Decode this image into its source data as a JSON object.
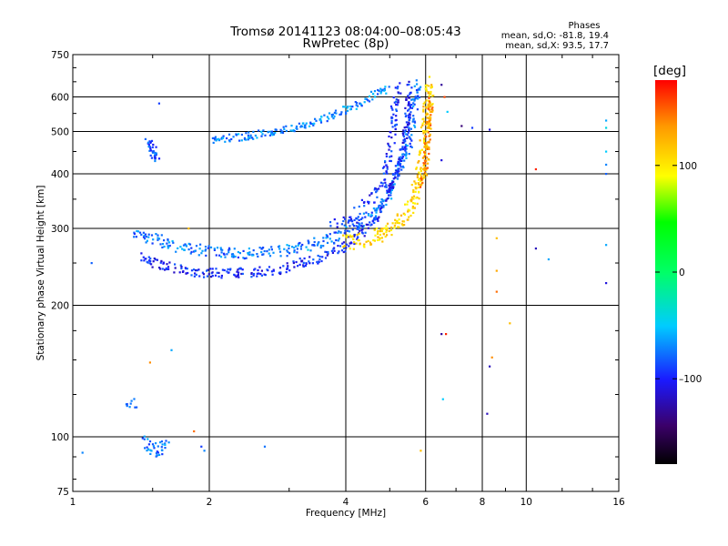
{
  "chart_data": {
    "type": "scatter",
    "title": "Tromsø 20141123 08:04:00–08:05:43",
    "subtitle": "RwPretec (8p)",
    "xlabel": "Frequency [MHz]",
    "ylabel": "Stationary phase Virtual Height [km]",
    "x_scale": "log",
    "y_scale": "log",
    "xlim": [
      1,
      16
    ],
    "ylim": [
      75,
      750
    ],
    "x_ticks": [
      1,
      2,
      4,
      6,
      8,
      10,
      16
    ],
    "x_tick_labels": [
      "1",
      "2",
      "4",
      "6",
      "8",
      "10",
      "16"
    ],
    "y_ticks": [
      75,
      100,
      200,
      300,
      400,
      500,
      600,
      750
    ],
    "y_tick_labels": [
      "75",
      "100",
      "200",
      "300",
      "400",
      "500",
      "600",
      "750"
    ],
    "grid": true,
    "phase_stats": {
      "heading": "Phases",
      "line_o": "mean, sd,O: -81.8, 19.4",
      "line_x": "mean, sd,X:  93.5, 17.7"
    },
    "colorbar": {
      "label": "[deg]",
      "range": [
        -180,
        180
      ],
      "ticks": [
        100,
        0,
        -100
      ],
      "tick_labels": [
        "100",
        "0",
        "–100"
      ]
    },
    "trace_groups": [
      {
        "points": [
          [
            1.35,
            290
          ],
          [
            1.5,
            285
          ],
          [
            1.7,
            272
          ],
          [
            1.9,
            268
          ],
          [
            2.2,
            265
          ],
          [
            2.5,
            263
          ],
          [
            2.8,
            265
          ],
          [
            3.1,
            270
          ],
          [
            3.4,
            275
          ],
          [
            3.7,
            285
          ],
          [
            4.0,
            295
          ],
          [
            4.3,
            308
          ],
          [
            4.6,
            325
          ],
          [
            4.9,
            350
          ],
          [
            5.1,
            380
          ],
          [
            5.3,
            420
          ],
          [
            5.5,
            470
          ],
          [
            5.6,
            530
          ],
          [
            5.7,
            600
          ],
          [
            5.8,
            640
          ]
        ],
        "phase": -75,
        "spread": 0.03,
        "density": 5
      },
      {
        "points": [
          [
            1.4,
            258
          ],
          [
            1.55,
            248
          ],
          [
            1.7,
            242
          ],
          [
            1.85,
            238
          ],
          [
            2.1,
            237
          ],
          [
            2.5,
            238
          ],
          [
            2.9,
            243
          ],
          [
            3.3,
            252
          ],
          [
            3.7,
            262
          ],
          [
            4.0,
            275
          ],
          [
            4.3,
            292
          ],
          [
            4.6,
            312
          ],
          [
            4.85,
            340
          ],
          [
            5.05,
            372
          ],
          [
            5.2,
            410
          ],
          [
            5.35,
            460
          ],
          [
            5.45,
            520
          ],
          [
            5.5,
            580
          ],
          [
            5.55,
            640
          ]
        ],
        "phase": -98,
        "spread": 0.025,
        "density": 5
      },
      {
        "points": [
          [
            2.0,
            478
          ],
          [
            2.3,
            485
          ],
          [
            2.7,
            497
          ],
          [
            3.1,
            510
          ],
          [
            3.5,
            530
          ],
          [
            3.9,
            555
          ],
          [
            4.3,
            580
          ],
          [
            4.6,
            605
          ],
          [
            4.85,
            620
          ],
          [
            5.0,
            625
          ]
        ],
        "phase": -70,
        "spread": 0.02,
        "density": 5
      },
      {
        "points": [
          [
            3.7,
            300
          ],
          [
            4.1,
            315
          ],
          [
            4.5,
            345
          ],
          [
            4.8,
            380
          ],
          [
            4.95,
            420
          ],
          [
            5.05,
            470
          ],
          [
            5.1,
            530
          ],
          [
            5.15,
            590
          ],
          [
            5.2,
            640
          ]
        ],
        "phase": -95,
        "spread": 0.035,
        "density": 4
      },
      {
        "points": [
          [
            4.0,
            278
          ],
          [
            4.4,
            283
          ],
          [
            4.8,
            292
          ],
          [
            5.2,
            308
          ],
          [
            5.5,
            330
          ],
          [
            5.7,
            360
          ],
          [
            5.85,
            395
          ],
          [
            5.95,
            440
          ],
          [
            6.0,
            490
          ],
          [
            6.05,
            550
          ],
          [
            6.1,
            610
          ],
          [
            6.12,
            650
          ]
        ],
        "phase": 110,
        "spread": 0.04,
        "density": 7
      },
      {
        "points": [
          [
            5.9,
            380
          ],
          [
            6.0,
            430
          ],
          [
            6.05,
            480
          ],
          [
            6.1,
            540
          ],
          [
            6.15,
            600
          ]
        ],
        "phase": 140,
        "spread": 0.025,
        "density": 4
      },
      {
        "points": [
          [
            1.47,
            470
          ],
          [
            1.5,
            450
          ],
          [
            1.53,
            430
          ]
        ],
        "phase": -85,
        "spread": 0.03,
        "density": 10
      },
      {
        "points": [
          [
            1.45,
            98
          ],
          [
            1.5,
            95
          ],
          [
            1.55,
            93
          ],
          [
            1.6,
            97
          ]
        ],
        "phase": -75,
        "spread": 0.04,
        "density": 8
      },
      {
        "points": [
          [
            1.32,
            120
          ],
          [
            1.37,
            118
          ]
        ],
        "phase": -70,
        "spread": 0.03,
        "density": 6
      }
    ],
    "scattered_points": [
      [
        1.05,
        92,
        -70
      ],
      [
        1.1,
        250,
        -80
      ],
      [
        1.55,
        580,
        -90
      ],
      [
        1.65,
        158,
        -60
      ],
      [
        1.8,
        300,
        120
      ],
      [
        1.85,
        103,
        150
      ],
      [
        1.92,
        95,
        -90
      ],
      [
        1.95,
        93,
        -70
      ],
      [
        2.65,
        95,
        -75
      ],
      [
        3.3,
        268,
        -40
      ],
      [
        6.5,
        640,
        -130
      ],
      [
        6.6,
        600,
        160
      ],
      [
        6.7,
        555,
        -50
      ],
      [
        7.2,
        515,
        -140
      ],
      [
        7.6,
        510,
        -90
      ],
      [
        8.3,
        505,
        -110
      ],
      [
        6.5,
        430,
        -110
      ],
      [
        6.5,
        172,
        -130
      ],
      [
        6.65,
        172,
        170
      ],
      [
        6.55,
        122,
        -50
      ],
      [
        8.6,
        285,
        120
      ],
      [
        8.6,
        240,
        130
      ],
      [
        8.6,
        215,
        150
      ],
      [
        9.2,
        182,
        120
      ],
      [
        8.4,
        152,
        140
      ],
      [
        8.3,
        145,
        -120
      ],
      [
        8.2,
        113,
        -120
      ],
      [
        10.5,
        410,
        170
      ],
      [
        10.5,
        270,
        -120
      ],
      [
        11.2,
        255,
        -60
      ],
      [
        15,
        530,
        -60
      ],
      [
        15,
        510,
        -40
      ],
      [
        15,
        450,
        -50
      ],
      [
        15,
        420,
        -70
      ],
      [
        15,
        400,
        -80
      ],
      [
        15,
        275,
        -60
      ],
      [
        15,
        225,
        -110
      ],
      [
        5.85,
        93,
        120
      ],
      [
        1.48,
        148,
        140
      ]
    ]
  }
}
